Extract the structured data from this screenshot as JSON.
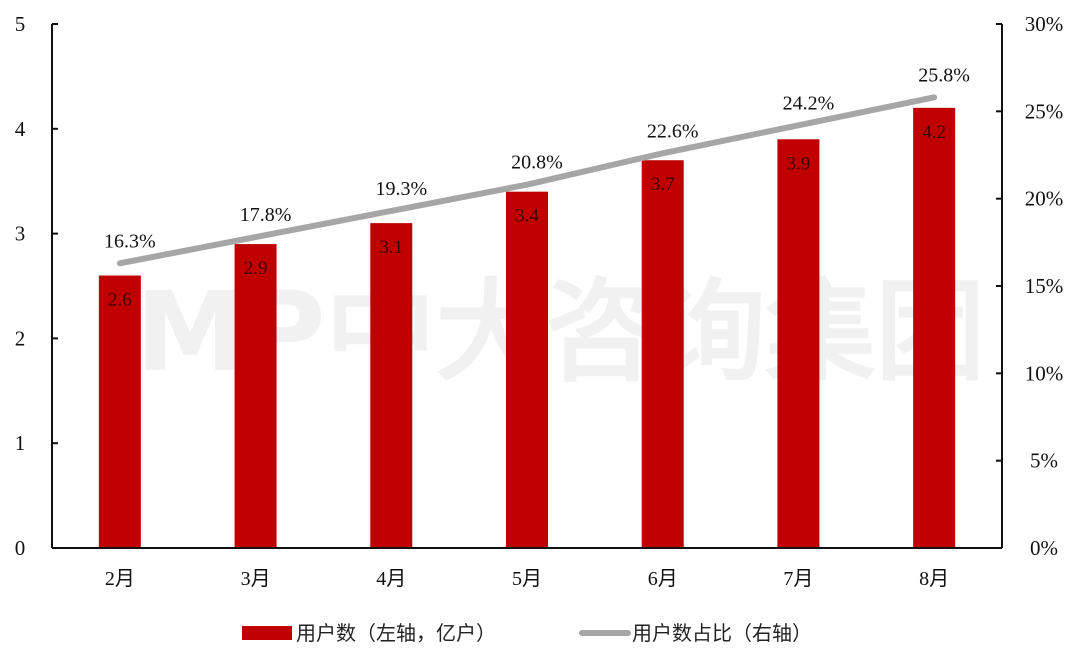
{
  "chart_data": {
    "type": "bar+line",
    "title": "",
    "categories": [
      "2月",
      "3月",
      "4月",
      "5月",
      "6月",
      "7月",
      "8月"
    ],
    "series": [
      {
        "name": "用户数（左轴，亿户）",
        "type": "bar",
        "axis": "left",
        "color": "#c00000",
        "values": [
          2.6,
          2.9,
          3.1,
          3.4,
          3.7,
          3.9,
          4.2
        ],
        "labels": [
          "2.6",
          "2.9",
          "3.1",
          "3.4",
          "3.7",
          "3.9",
          "4.2"
        ]
      },
      {
        "name": "用户数占比（右轴）",
        "type": "line",
        "axis": "right",
        "color": "#a6a6a6",
        "values": [
          16.3,
          17.8,
          19.3,
          20.8,
          22.6,
          24.2,
          25.8
        ],
        "labels": [
          "16.3%",
          "17.8%",
          "19.3%",
          "20.8%",
          "22.6%",
          "24.2%",
          "25.8%"
        ]
      }
    ],
    "left_axis": {
      "ylim": [
        0,
        5
      ],
      "ticks": [
        "0",
        "1",
        "2",
        "3",
        "4",
        "5"
      ]
    },
    "right_axis": {
      "ylim": [
        0,
        30
      ],
      "ticks": [
        "0%",
        "5%",
        "10%",
        "15%",
        "20%",
        "25%",
        "30%"
      ]
    },
    "grid": false,
    "legend_position": "bottom",
    "watermark": "IMP中大咨询集团"
  }
}
